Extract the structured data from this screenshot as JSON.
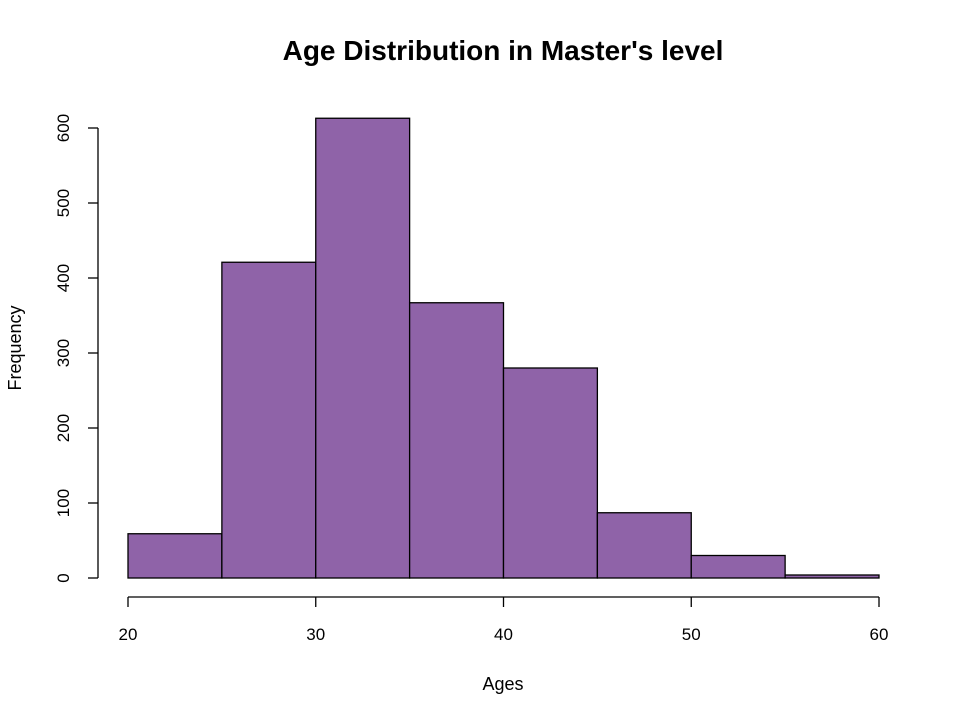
{
  "chart_data": {
    "type": "bar",
    "title": "Age Distribution in Master's level",
    "xlabel": "Ages",
    "ylabel": "Frequency",
    "bin_edges": [
      20,
      25,
      30,
      35,
      40,
      45,
      50,
      55,
      60
    ],
    "values": [
      59,
      421,
      613,
      367,
      280,
      87,
      30,
      4
    ],
    "x_ticks": [
      "20",
      "30",
      "40",
      "50",
      "60"
    ],
    "y_ticks": [
      "0",
      "100",
      "200",
      "300",
      "400",
      "500",
      "600"
    ],
    "xlim": [
      20,
      60
    ],
    "ylim": [
      0,
      600
    ],
    "grid": false,
    "bar_color": "#8F63A8",
    "edge_color": "#000000"
  }
}
